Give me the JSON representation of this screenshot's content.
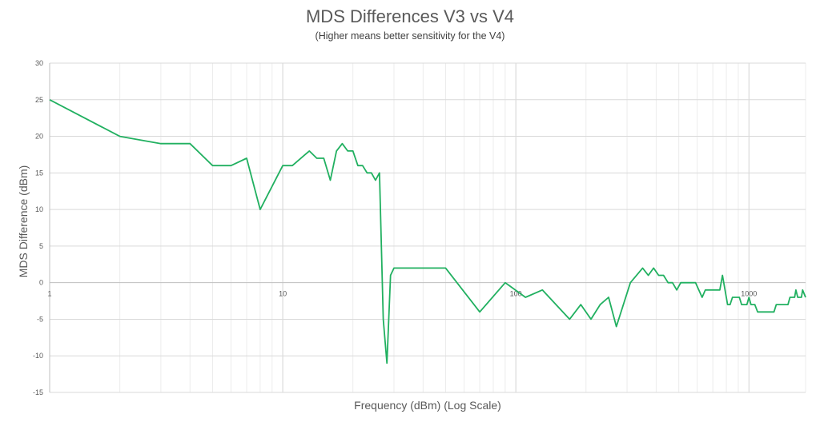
{
  "chart_data": {
    "type": "line",
    "title": "MDS Differences V3 vs V4",
    "subtitle": "(Higher means better sensitivity for the V4)",
    "xlabel": "Frequency (dBm) (Log Scale)",
    "ylabel": "MDS Difference (dBm)",
    "xscale": "log",
    "xlim": [
      1,
      1750
    ],
    "ylim": [
      -15,
      30
    ],
    "yticks": [
      30,
      25,
      20,
      15,
      10,
      5,
      0,
      -5,
      -10,
      -15
    ],
    "xticks": [
      1,
      10,
      100,
      1000
    ],
    "grid": true,
    "legend": "none",
    "line_color": "#21b060",
    "series": [
      {
        "x": [
          1,
          2,
          3,
          4,
          5,
          6,
          7,
          8,
          10,
          11,
          13,
          14,
          15,
          16,
          17,
          18,
          19,
          20,
          21,
          22,
          23,
          24,
          25,
          26,
          27,
          28,
          29,
          30,
          50,
          70,
          90,
          110,
          130,
          170,
          190,
          210,
          230,
          250,
          270,
          310,
          350,
          370,
          390,
          410,
          430,
          450,
          470,
          490,
          510,
          590,
          630,
          650,
          750,
          770,
          810,
          830,
          850,
          910,
          930,
          980,
          1000,
          1020,
          1060,
          1090,
          1280,
          1310,
          1470,
          1500,
          1570,
          1590,
          1620,
          1680,
          1700,
          1750
        ],
        "y": [
          25,
          20,
          19,
          19,
          16,
          16,
          17,
          10,
          16,
          16,
          18,
          17,
          17,
          14,
          18,
          19,
          18,
          18,
          16,
          16,
          15,
          15,
          14,
          15,
          -5,
          -11,
          1,
          2,
          2,
          -4,
          0,
          -2,
          -1,
          -5,
          -3,
          -5,
          -3,
          -2,
          -6,
          0,
          2,
          1,
          2,
          1,
          1,
          0,
          0,
          -1,
          0,
          0,
          -2,
          -1,
          -1,
          1,
          -3,
          -3,
          -2,
          -2,
          -3,
          -3,
          -2,
          -3,
          -3,
          -4,
          -4,
          -3,
          -3,
          -2,
          -2,
          -1,
          -2,
          -2,
          -1,
          -2
        ]
      }
    ]
  }
}
